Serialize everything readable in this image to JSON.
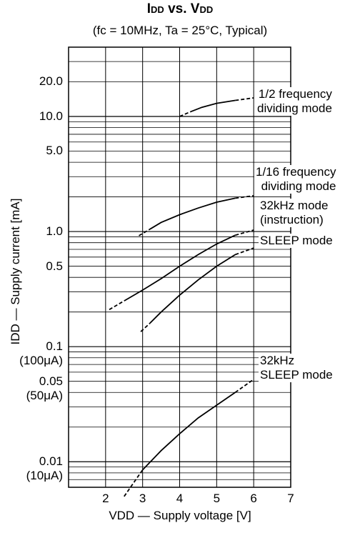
{
  "chart_data": {
    "type": "line",
    "title_main": "I",
    "title_sub1": "DD",
    "title_mid": " vs. V",
    "title_sub2": "DD",
    "subtitle": "(fc = 10MHz, Ta = 25°C, Typical)",
    "xlabel": "VDD — Supply voltage  [V]",
    "ylabel": "IDD — Supply current  [mA]",
    "x_scale": "linear",
    "y_scale": "log",
    "xlim": [
      1,
      7
    ],
    "ylim": [
      0.006,
      40
    ],
    "grid": true,
    "x_ticks": [
      "2",
      "3",
      "4",
      "5",
      "6",
      "7"
    ],
    "y_ticks": [
      {
        "value": 20,
        "label": "20.0"
      },
      {
        "value": 10,
        "label": "10.0"
      },
      {
        "value": 5,
        "label": "5.0"
      },
      {
        "value": 1,
        "label": "1.0"
      },
      {
        "value": 0.5,
        "label": "0.5"
      },
      {
        "value": 0.1,
        "label": "0.1",
        "label2": "(100μA)"
      },
      {
        "value": 0.05,
        "label": "0.05",
        "label2": "(50μA)"
      },
      {
        "value": 0.01,
        "label": "0.01",
        "label2": "(10μA)"
      }
    ],
    "series": [
      {
        "name": "1/2 frequency dividing mode",
        "label_line1": "1/2 frequency",
        "label_line2": "dividing mode",
        "x": [
          4.0,
          4.3,
          4.6,
          5.0,
          5.5,
          6.0
        ],
        "y": [
          10.0,
          11.0,
          12.0,
          13.0,
          13.8,
          14.5
        ]
      },
      {
        "name": "1/16 frequency dividing mode",
        "label_line1": "1/16 frequency",
        "label_line2": "dividing mode",
        "x": [
          2.9,
          3.2,
          3.5,
          4.0,
          4.5,
          5.0,
          5.5,
          6.0
        ],
        "y": [
          0.92,
          1.05,
          1.2,
          1.4,
          1.6,
          1.8,
          1.95,
          2.05
        ]
      },
      {
        "name": "32kHz mode (instruction)",
        "label_line1": "32kHz mode",
        "label_line2": "(instruction)",
        "x": [
          2.1,
          2.5,
          3.0,
          3.5,
          4.0,
          4.5,
          5.0,
          5.5,
          6.0
        ],
        "y": [
          0.21,
          0.25,
          0.31,
          0.39,
          0.5,
          0.63,
          0.78,
          0.93,
          1.03
        ]
      },
      {
        "name": "SLEEP mode",
        "label_line1": "SLEEP mode",
        "x": [
          2.95,
          3.2,
          3.5,
          4.0,
          4.5,
          5.0,
          5.5,
          6.0
        ],
        "y": [
          0.135,
          0.16,
          0.2,
          0.28,
          0.38,
          0.5,
          0.63,
          0.72
        ]
      },
      {
        "name": "32kHz SLEEP mode",
        "label_line1": "32kHz",
        "label_line2": "SLEEP mode",
        "x": [
          2.5,
          3.0,
          3.5,
          4.0,
          4.5,
          5.0,
          5.5,
          6.0
        ],
        "y": [
          0.005,
          0.0085,
          0.0125,
          0.0175,
          0.024,
          0.031,
          0.04,
          0.052
        ]
      }
    ]
  }
}
